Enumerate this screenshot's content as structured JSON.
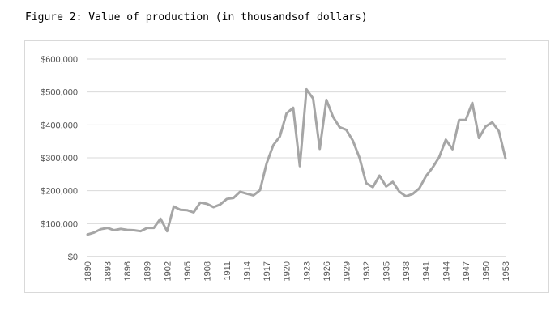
{
  "caption": "Figure 2: Value of production (in thousandsof dollars)",
  "chart_data": {
    "type": "line",
    "title": "",
    "xlabel": "",
    "ylabel": "",
    "ylim": [
      0,
      600000
    ],
    "yticks": [
      {
        "value": 0,
        "label": "$0"
      },
      {
        "value": 100000,
        "label": "$100,000"
      },
      {
        "value": 200000,
        "label": "$200,000"
      },
      {
        "value": 300000,
        "label": "$300,000"
      },
      {
        "value": 400000,
        "label": "$400,000"
      },
      {
        "value": 500000,
        "label": "$500,000"
      },
      {
        "value": 600000,
        "label": "$600,000"
      }
    ],
    "xticks": [
      "1890",
      "1893",
      "1896",
      "1899",
      "1902",
      "1905",
      "1908",
      "1911",
      "1914",
      "1917",
      "1920",
      "1923",
      "1926",
      "1929",
      "1932",
      "1935",
      "1938",
      "1941",
      "1944",
      "1947",
      "1950",
      "1953"
    ],
    "grid": true,
    "legend": "none",
    "colors": {
      "line": "#a6a6a6",
      "grid": "#d9d9d9",
      "axis": "#bfbfbf"
    },
    "series": [
      {
        "x": [
          1890,
          1891,
          1892,
          1893,
          1894,
          1895,
          1896,
          1897,
          1898,
          1899,
          1900,
          1901,
          1902,
          1903,
          1904,
          1905,
          1906,
          1907,
          1908,
          1909,
          1910,
          1911,
          1912,
          1913,
          1914,
          1915,
          1916,
          1917,
          1918,
          1919,
          1920,
          1921,
          1922,
          1923,
          1924,
          1925,
          1926,
          1927,
          1928,
          1929,
          1930,
          1931,
          1932,
          1933,
          1934,
          1935,
          1936,
          1937,
          1938,
          1939,
          1940,
          1941,
          1942,
          1943,
          1944,
          1945,
          1946,
          1947,
          1948,
          1949,
          1950,
          1951,
          1952,
          1953
        ],
        "values": [
          67000,
          73000,
          83000,
          87000,
          80000,
          84000,
          81000,
          80000,
          77000,
          87000,
          87000,
          115000,
          77000,
          152000,
          142000,
          141000,
          134000,
          164000,
          160000,
          150000,
          158000,
          175000,
          178000,
          197000,
          191000,
          186000,
          202000,
          283000,
          338000,
          365000,
          435000,
          452000,
          275000,
          508000,
          480000,
          327000,
          476000,
          425000,
          393000,
          385000,
          352000,
          300000,
          223000,
          211000,
          246000,
          213000,
          227000,
          197000,
          183000,
          190000,
          207000,
          244000,
          270000,
          302000,
          355000,
          326000,
          415000,
          415000,
          467000,
          360000,
          395000,
          408000,
          381000,
          298000
        ]
      }
    ]
  }
}
